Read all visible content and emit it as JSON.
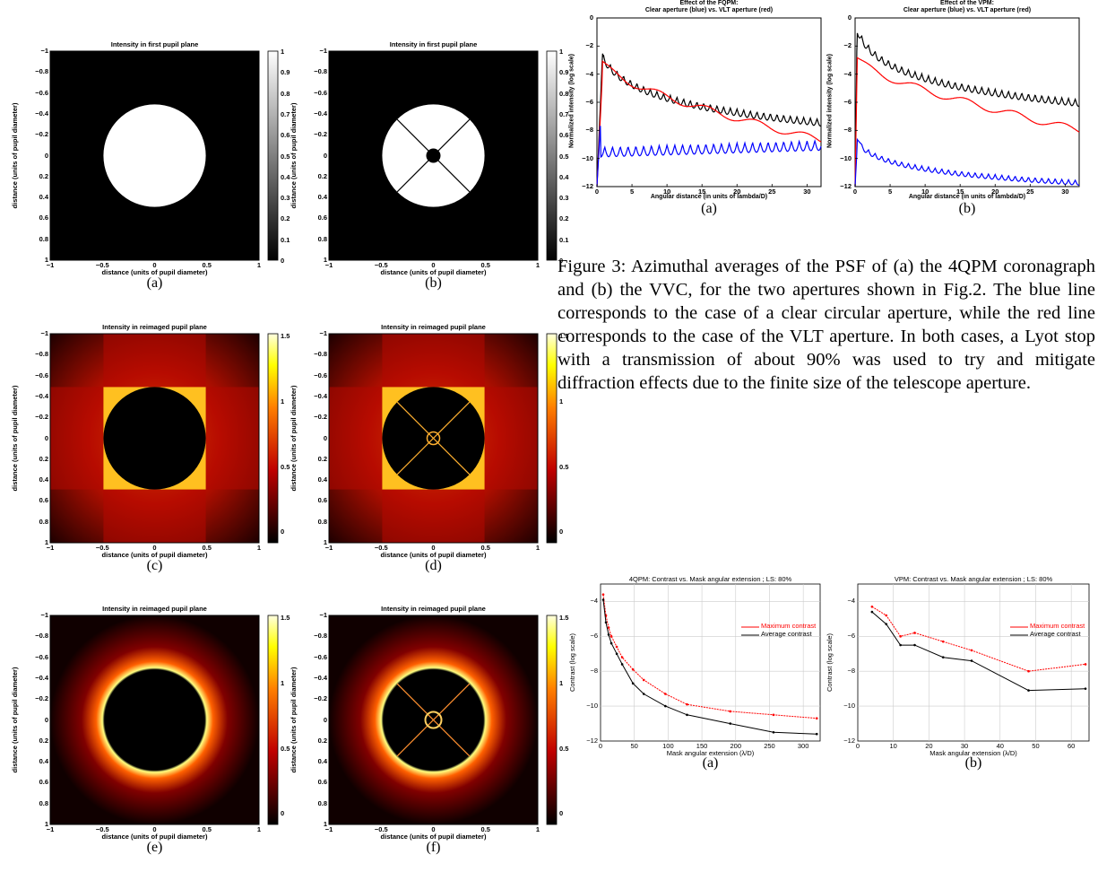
{
  "pupil_panels": [
    {
      "id": "a",
      "title": "Intensity in first pupil plane",
      "caption": "(a)",
      "colorbar": "gray",
      "ticks": [
        "1",
        "0.9",
        "0.8",
        "0.7",
        "0.6",
        "0.5",
        "0.4",
        "0.3",
        "0.2",
        "0.1",
        "0"
      ]
    },
    {
      "id": "b",
      "title": "Intensity in first pupil plane",
      "caption": "(b)",
      "colorbar": "gray",
      "ticks": [
        "1",
        "0.9",
        "0.8",
        "0.7",
        "0.6",
        "0.5",
        "0.4",
        "0.3",
        "0.2",
        "0.1",
        "0"
      ]
    },
    {
      "id": "c",
      "title": "Intensity in reimaged pupil plane",
      "caption": "(c)",
      "colorbar": "hot",
      "ticks": [
        "1.5",
        "1",
        "0.5",
        "0"
      ]
    },
    {
      "id": "d",
      "title": "Intensity in reimaged pupil plane",
      "caption": "(d)",
      "colorbar": "hot",
      "ticks": [
        "1.5",
        "1",
        "0.5",
        "0"
      ]
    },
    {
      "id": "e",
      "title": "Intensity in reimaged pupil plane",
      "caption": "(e)",
      "colorbar": "hot",
      "ticks": [
        "1.5",
        "1",
        "0.5",
        "0"
      ]
    },
    {
      "id": "f",
      "title": "Intensity in reimaged pupil plane",
      "caption": "(f)",
      "colorbar": "hot",
      "ticks": [
        "1.5",
        "1",
        "0.5",
        "0"
      ]
    }
  ],
  "pupil_axes": {
    "xlabel": "distance (units of pupil diameter)",
    "ylabel": "distance (units of pupil diameter)",
    "xticks": [
      "−1",
      "−0.5",
      "0",
      "0.5",
      "1"
    ],
    "yticks": [
      "−1",
      "−0.8",
      "−0.6",
      "−0.4",
      "−0.2",
      "0",
      "0.2",
      "0.4",
      "0.6",
      "0.8",
      "1"
    ]
  },
  "profile_charts": {
    "xlabel": "Angular distance (in units of lambda/D)",
    "ylabel": "Normalized intensity (log scale)",
    "xticks": [
      "0",
      "5",
      "10",
      "15",
      "20",
      "25",
      "30"
    ],
    "yticks": [
      "0",
      "−2",
      "−4",
      "−6",
      "−8",
      "−10",
      "−12"
    ],
    "items": [
      {
        "title1": "Effect of the FQPM:",
        "title2": "Clear aperture (blue) vs. VLT aperture (red)",
        "caption": "(a)"
      },
      {
        "title1": "Effect of the VPM:",
        "title2": "Clear aperture (blue) vs. VLT aperture (red)",
        "caption": "(b)"
      }
    ]
  },
  "figure3_caption": "Figure 3: Azimuthal averages of the PSF of (a) the 4QPM coronagraph and (b) the VVC, for the two apertures shown in Fig.2. The blue line corresponds to the case of a clear circular aperture, while the red line corresponds to the case of the VLT aperture. In both cases, a Lyot stop with a transmission of about 90% was used to try and mitigate diffraction effects due to the finite size of the telescope aperture.",
  "chart_data": [
    {
      "type": "line",
      "title": "4QPM: Contrast vs. Mask angular extension ; LS: 80%",
      "xlabel": "Mask angular extension (λ/D)",
      "ylabel": "Contrast (log scale)",
      "xlim": [
        0,
        325
      ],
      "ylim": [
        -12,
        -3
      ],
      "xticks": [
        "0",
        "50",
        "100",
        "150",
        "200",
        "250",
        "300"
      ],
      "yticks": [
        "−4",
        "−6",
        "−8",
        "−10",
        "−12"
      ],
      "caption": "(a)",
      "legend": "top-right",
      "series": [
        {
          "name": "Maximum contrast",
          "color": "#ff0000",
          "x": [
            4,
            8,
            12,
            16,
            24,
            32,
            48,
            64,
            96,
            128,
            192,
            256,
            320
          ],
          "y": [
            -3.6,
            -4.8,
            -5.5,
            -6.0,
            -6.6,
            -7.2,
            -7.9,
            -8.5,
            -9.3,
            -9.9,
            -10.3,
            -10.5,
            -10.7
          ]
        },
        {
          "name": "Average contrast",
          "color": "#000000",
          "x": [
            4,
            8,
            12,
            16,
            24,
            32,
            48,
            64,
            96,
            128,
            192,
            256,
            320
          ],
          "y": [
            -3.9,
            -5.2,
            -5.9,
            -6.4,
            -7.0,
            -7.6,
            -8.7,
            -9.3,
            -10.0,
            -10.5,
            -11.0,
            -11.5,
            -11.6
          ]
        }
      ]
    },
    {
      "type": "line",
      "title": "VPM: Contrast vs. Mask angular extension ; LS: 80%",
      "xlabel": "Mask angular extension (λ/D)",
      "ylabel": "Contrast (log scale)",
      "xlim": [
        0,
        65
      ],
      "ylim": [
        -12,
        -3
      ],
      "xticks": [
        "0",
        "10",
        "20",
        "30",
        "40",
        "50",
        "60"
      ],
      "yticks": [
        "−4",
        "−6",
        "−8",
        "−10",
        "−12"
      ],
      "caption": "(b)",
      "legend": "top-right",
      "series": [
        {
          "name": "Maximum contrast",
          "color": "#ff0000",
          "x": [
            4,
            8,
            12,
            16,
            24,
            32,
            48,
            64
          ],
          "y": [
            -4.3,
            -4.8,
            -6.0,
            -5.8,
            -6.3,
            -6.8,
            -8.0,
            -7.6
          ]
        },
        {
          "name": "Average contrast",
          "color": "#000000",
          "x": [
            4,
            8,
            12,
            16,
            24,
            32,
            48,
            64
          ],
          "y": [
            -4.6,
            -5.3,
            -6.5,
            -6.5,
            -7.2,
            -7.4,
            -9.1,
            -9.0
          ]
        }
      ]
    }
  ]
}
